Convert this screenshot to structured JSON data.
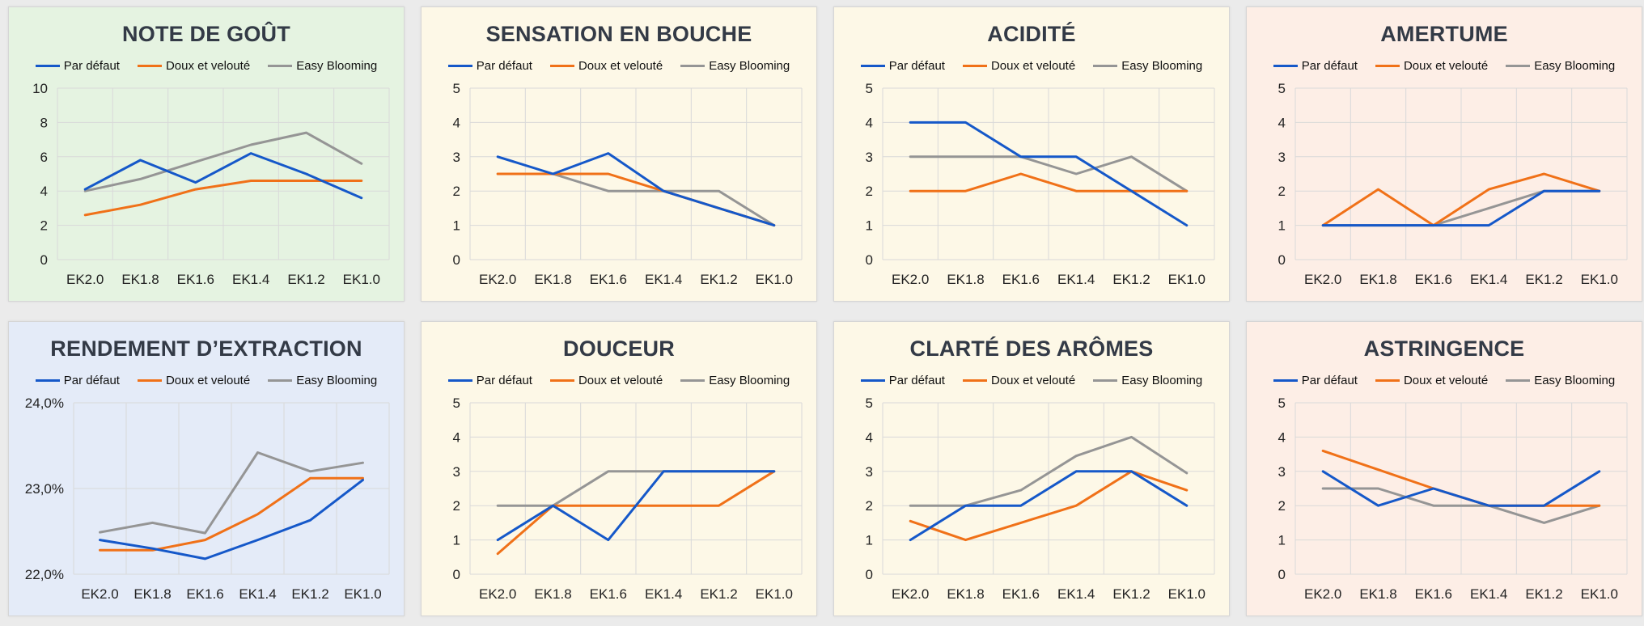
{
  "colors": {
    "series": [
      "#1558c9",
      "#f07118",
      "#959595"
    ],
    "green": "#e5f3e1",
    "yellow": "#fdf8e7",
    "peach": "#fdeee6",
    "blue": "#e4ebf8",
    "gridline": "#d9d9d9"
  },
  "legend": [
    "Par défaut",
    "Doux et velouté",
    "Easy Blooming"
  ],
  "chart_data": [
    {
      "type": "line",
      "bg": "green",
      "title": "NOTE DE GOÛT",
      "categories": [
        "EK2.0",
        "EK1.8",
        "EK1.6",
        "EK1.4",
        "EK1.2",
        "EK1.0"
      ],
      "ylim": [
        0,
        10
      ],
      "yticks": [
        "0",
        "2",
        "4",
        "6",
        "8",
        "10"
      ],
      "series": [
        {
          "name": "Par défaut",
          "values": [
            4.1,
            5.8,
            4.5,
            6.2,
            5.0,
            3.6
          ]
        },
        {
          "name": "Doux et velouté",
          "values": [
            2.6,
            3.2,
            4.1,
            4.6,
            4.6,
            4.6
          ]
        },
        {
          "name": "Easy Blooming",
          "values": [
            4.0,
            4.7,
            5.7,
            6.7,
            7.4,
            5.6
          ]
        }
      ]
    },
    {
      "type": "line",
      "bg": "yellow",
      "title": "SENSATION EN BOUCHE",
      "categories": [
        "EK2.0",
        "EK1.8",
        "EK1.6",
        "EK1.4",
        "EK1.2",
        "EK1.0"
      ],
      "ylim": [
        0,
        5
      ],
      "yticks": [
        "0",
        "1",
        "2",
        "3",
        "4",
        "5"
      ],
      "series": [
        {
          "name": "Par défaut",
          "values": [
            3.0,
            2.5,
            3.1,
            2.0,
            1.5,
            1.0
          ]
        },
        {
          "name": "Doux et velouté",
          "values": [
            2.5,
            2.5,
            2.5,
            2.0,
            1.5,
            1.0
          ]
        },
        {
          "name": "Easy Blooming",
          "values": [
            2.5,
            2.5,
            2.0,
            2.0,
            2.0,
            1.0
          ]
        }
      ]
    },
    {
      "type": "line",
      "bg": "yellow",
      "title": "ACIDITÉ",
      "categories": [
        "EK2.0",
        "EK1.8",
        "EK1.6",
        "EK1.4",
        "EK1.2",
        "EK1.0"
      ],
      "ylim": [
        0,
        5
      ],
      "yticks": [
        "0",
        "1",
        "2",
        "3",
        "4",
        "5"
      ],
      "series": [
        {
          "name": "Par défaut",
          "values": [
            4.0,
            4.0,
            3.0,
            3.0,
            2.0,
            1.0
          ]
        },
        {
          "name": "Doux et velouté",
          "values": [
            2.0,
            2.0,
            2.5,
            2.0,
            2.0,
            2.0
          ]
        },
        {
          "name": "Easy Blooming",
          "values": [
            3.0,
            3.0,
            3.0,
            2.5,
            3.0,
            2.0
          ]
        }
      ]
    },
    {
      "type": "line",
      "bg": "peach",
      "title": "AMERTUME",
      "categories": [
        "EK2.0",
        "EK1.8",
        "EK1.6",
        "EK1.4",
        "EK1.2",
        "EK1.0"
      ],
      "ylim": [
        0,
        5
      ],
      "yticks": [
        "0",
        "1",
        "2",
        "3",
        "4",
        "5"
      ],
      "series": [
        {
          "name": "Par défaut",
          "values": [
            1.0,
            1.0,
            1.0,
            1.0,
            2.0,
            2.0
          ]
        },
        {
          "name": "Doux et velouté",
          "values": [
            1.0,
            2.05,
            1.0,
            2.05,
            2.5,
            2.0
          ]
        },
        {
          "name": "Easy Blooming",
          "values": [
            1.0,
            1.0,
            1.0,
            1.5,
            2.0,
            2.0
          ]
        }
      ]
    },
    {
      "type": "line",
      "bg": "blue",
      "title": "RENDEMENT D’EXTRACTION",
      "categories": [
        "EK2.0",
        "EK1.8",
        "EK1.6",
        "EK1.4",
        "EK1.2",
        "EK1.0"
      ],
      "ylim": [
        22.0,
        24.0
      ],
      "yticks": [
        "22,0%",
        "23,0%",
        "24,0%"
      ],
      "series": [
        {
          "name": "Par défaut",
          "values": [
            22.4,
            22.3,
            22.18,
            22.4,
            22.63,
            23.1
          ]
        },
        {
          "name": "Doux et velouté",
          "values": [
            22.28,
            22.28,
            22.4,
            22.7,
            23.12,
            23.12
          ]
        },
        {
          "name": "Easy Blooming",
          "values": [
            22.49,
            22.6,
            22.48,
            23.42,
            23.2,
            23.3
          ]
        }
      ]
    },
    {
      "type": "line",
      "bg": "yellow",
      "title": "DOUCEUR",
      "categories": [
        "EK2.0",
        "EK1.8",
        "EK1.6",
        "EK1.4",
        "EK1.2",
        "EK1.0"
      ],
      "ylim": [
        0,
        5
      ],
      "yticks": [
        "0",
        "1",
        "2",
        "3",
        "4",
        "5"
      ],
      "series": [
        {
          "name": "Par défaut",
          "values": [
            1.0,
            2.0,
            1.0,
            3.0,
            3.0,
            3.0
          ]
        },
        {
          "name": "Doux et velouté",
          "values": [
            0.6,
            2.0,
            2.0,
            2.0,
            2.0,
            3.0
          ]
        },
        {
          "name": "Easy Blooming",
          "values": [
            2.0,
            2.0,
            3.0,
            3.0,
            3.0,
            3.0
          ]
        }
      ]
    },
    {
      "type": "line",
      "bg": "yellow",
      "title": "CLARTÉ DES ARÔMES",
      "categories": [
        "EK2.0",
        "EK1.8",
        "EK1.6",
        "EK1.4",
        "EK1.2",
        "EK1.0"
      ],
      "ylim": [
        0,
        5
      ],
      "yticks": [
        "0",
        "1",
        "2",
        "3",
        "4",
        "5"
      ],
      "series": [
        {
          "name": "Par défaut",
          "values": [
            1.0,
            2.0,
            2.0,
            3.0,
            3.0,
            2.0
          ]
        },
        {
          "name": "Doux et velouté",
          "values": [
            1.55,
            1.0,
            1.5,
            2.0,
            3.0,
            2.45
          ]
        },
        {
          "name": "Easy Blooming",
          "values": [
            2.0,
            2.0,
            2.45,
            3.45,
            4.0,
            2.95
          ]
        }
      ]
    },
    {
      "type": "line",
      "bg": "peach",
      "title": "ASTRINGENCE",
      "categories": [
        "EK2.0",
        "EK1.8",
        "EK1.6",
        "EK1.4",
        "EK1.2",
        "EK1.0"
      ],
      "ylim": [
        0,
        5
      ],
      "yticks": [
        "0",
        "1",
        "2",
        "3",
        "4",
        "5"
      ],
      "series": [
        {
          "name": "Par défaut",
          "values": [
            3.0,
            2.0,
            2.5,
            2.0,
            2.0,
            3.0
          ]
        },
        {
          "name": "Doux et velouté",
          "values": [
            3.6,
            3.05,
            2.5,
            2.0,
            2.0,
            2.0
          ]
        },
        {
          "name": "Easy Blooming",
          "values": [
            2.5,
            2.5,
            2.0,
            2.0,
            1.5,
            2.0
          ]
        }
      ]
    }
  ]
}
